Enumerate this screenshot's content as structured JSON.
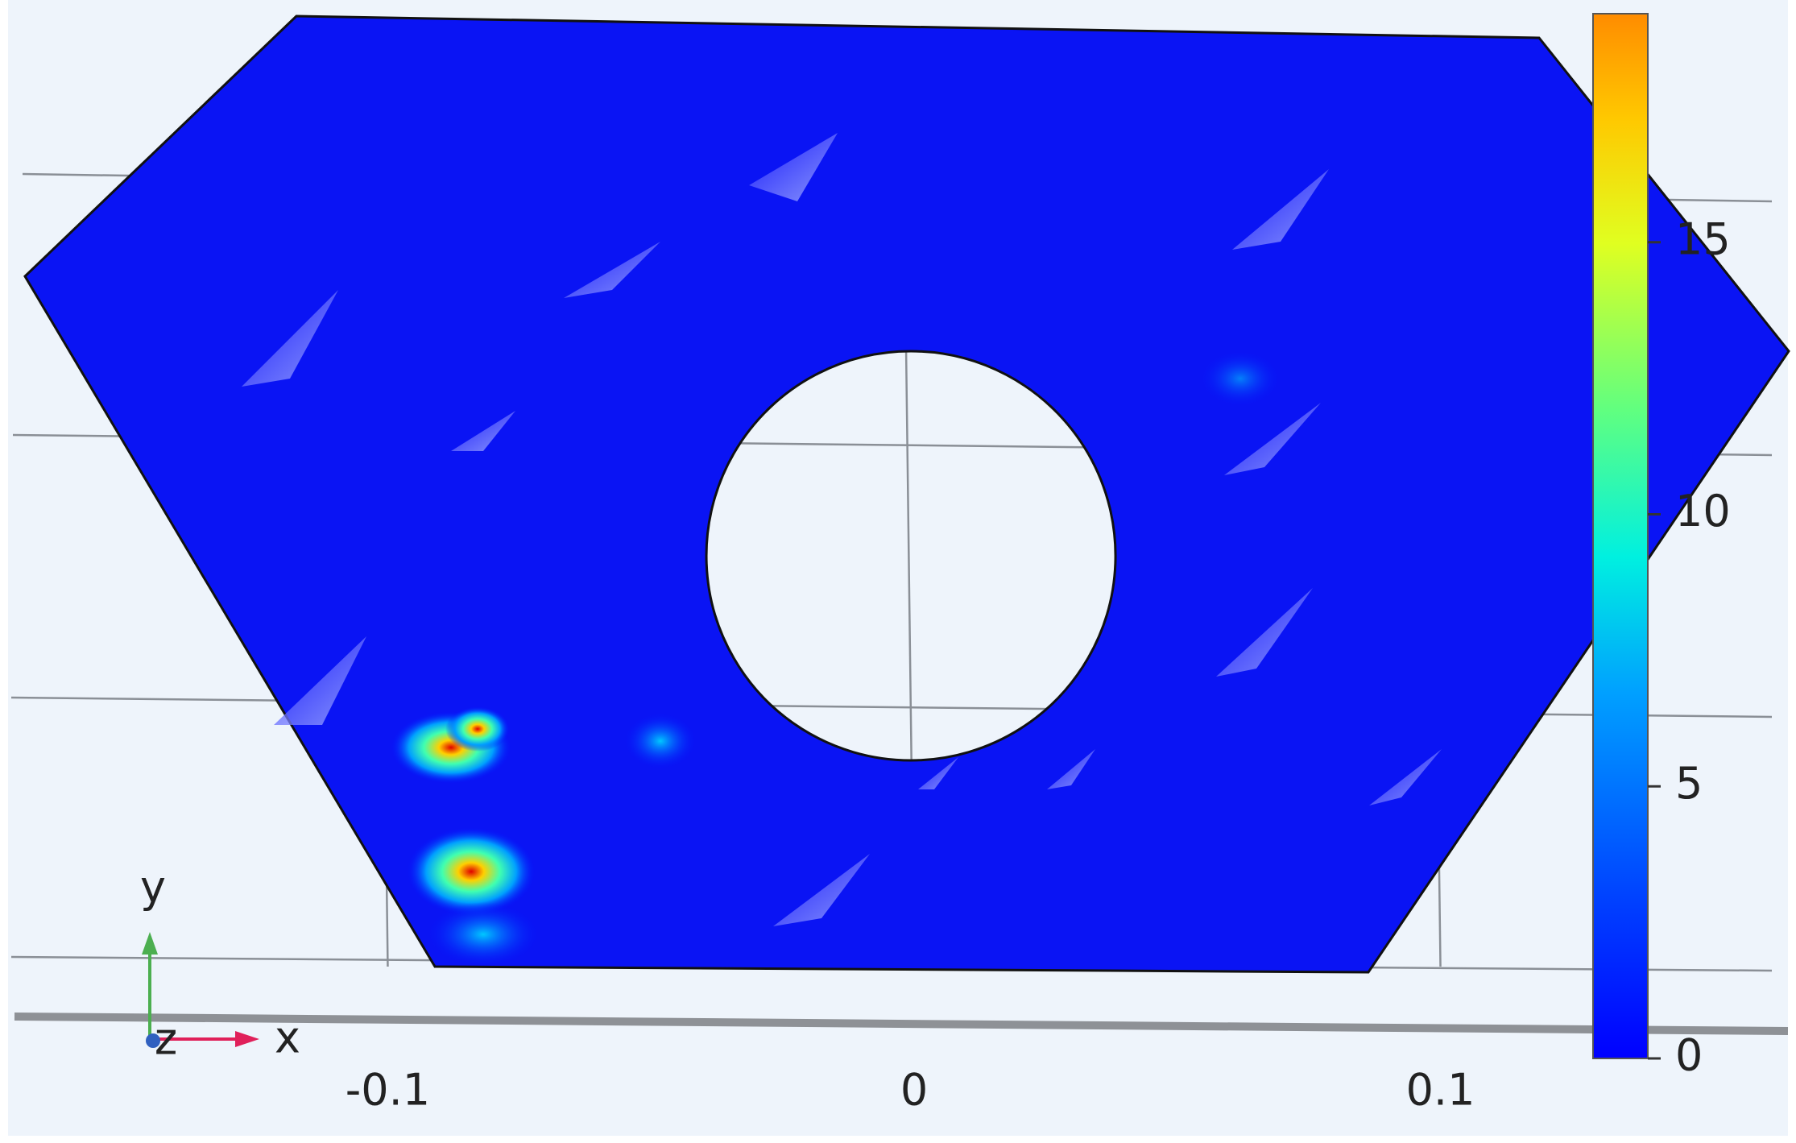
{
  "chart_data": {
    "type": "surface",
    "xlim": [
      -0.17,
      0.17
    ],
    "xticks": [
      -0.1,
      0,
      0.1
    ],
    "triad_labels": {
      "x": "x",
      "y": "y",
      "z": "z"
    },
    "colorbar": {
      "lim": [
        0,
        19.2
      ],
      "ticks": [
        0,
        5,
        10,
        15
      ]
    }
  }
}
